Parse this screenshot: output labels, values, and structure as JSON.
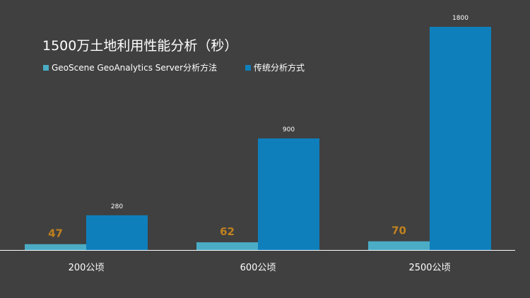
{
  "chart_data": {
    "type": "bar",
    "title": "1500万土地利用性能分析（秒）",
    "categories": [
      "200公顷",
      "600公顷",
      "2500公顷"
    ],
    "series": [
      {
        "name": "GeoScene GeoAnalytics Server分析方法",
        "values": [
          47,
          62,
          70
        ],
        "color": "#4bacc6",
        "label_color": "#c0811f"
      },
      {
        "name": "传统分析方式",
        "values": [
          280,
          900,
          1800
        ],
        "color": "#0f7fbc",
        "label_color": "#ffffff"
      }
    ],
    "ylim": [
      0,
      1800
    ],
    "grid": false,
    "legend_position": "top-left",
    "background_color": "#404040",
    "axis_color": "#ffffff"
  }
}
